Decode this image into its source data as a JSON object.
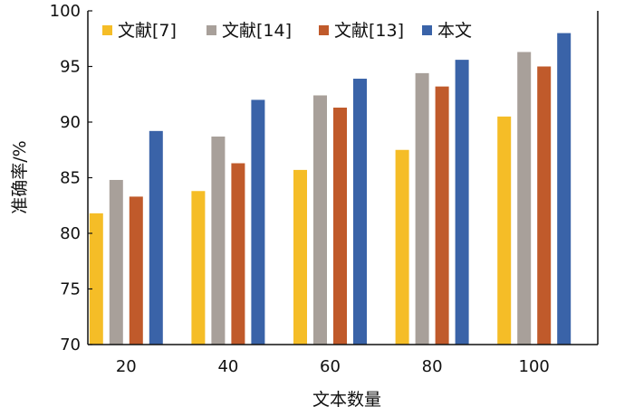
{
  "chart_data": {
    "type": "bar",
    "xlabel": "文本数量",
    "ylabel": "准确率/%",
    "categories": [
      "20",
      "40",
      "60",
      "80",
      "100"
    ],
    "ylim": [
      70,
      100
    ],
    "yticks": [
      70,
      75,
      80,
      85,
      90,
      95,
      100
    ],
    "grid": false,
    "legend_position": "top",
    "series": [
      {
        "name": "文献[7]",
        "color": "#F5BD27",
        "values": [
          81.8,
          83.8,
          85.7,
          87.5,
          90.5
        ]
      },
      {
        "name": "文献[14]",
        "color": "#A8A09A",
        "values": [
          84.8,
          88.7,
          92.4,
          94.4,
          96.3
        ]
      },
      {
        "name": "文献[13]",
        "color": "#C05A2B",
        "values": [
          83.3,
          86.3,
          91.3,
          93.2,
          95.0
        ]
      },
      {
        "name": "本文",
        "color": "#3A63A8",
        "values": [
          89.2,
          92.0,
          93.9,
          95.6,
          98.0
        ]
      }
    ]
  }
}
